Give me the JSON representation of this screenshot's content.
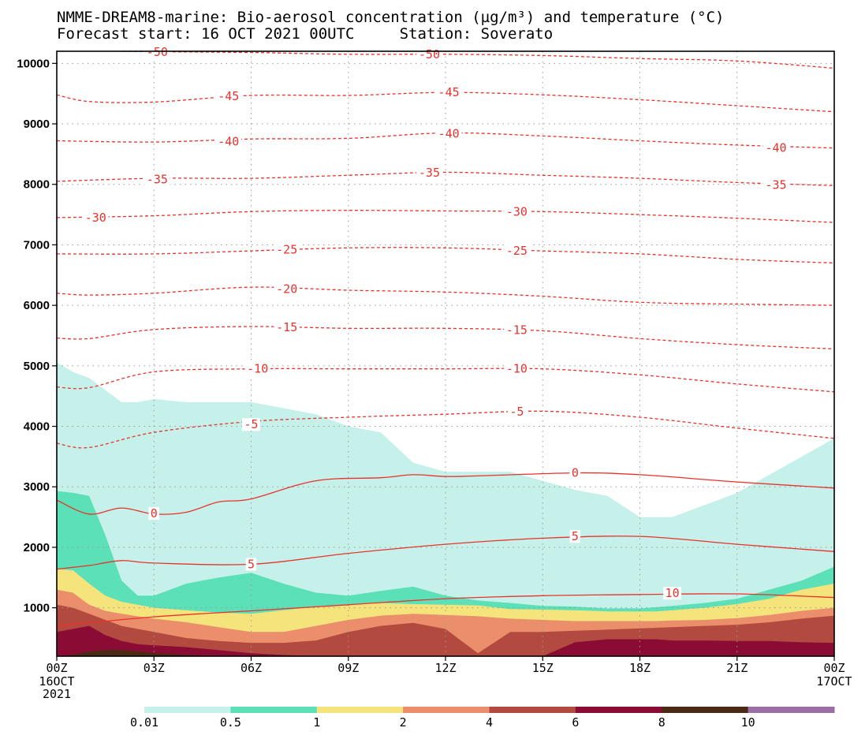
{
  "chart_data": {
    "type": "contour",
    "title": "NMME-DREAM8-marine: Bio-aerosol concentration (µg/m³) and temperature (°C)",
    "subtitle": "Forecast start: 16 OCT 2021 00UTC     Station: Soverato",
    "ylim": [
      200,
      10200
    ],
    "xlim": [
      0,
      24
    ],
    "y_ticks": [
      1000,
      2000,
      3000,
      4000,
      5000,
      6000,
      7000,
      8000,
      9000,
      10000
    ],
    "x_ticks": [
      {
        "h": 0,
        "label": "00Z",
        "sub": [
          "16OCT",
          "2021"
        ]
      },
      {
        "h": 3,
        "label": "03Z",
        "sub": []
      },
      {
        "h": 6,
        "label": "06Z",
        "sub": []
      },
      {
        "h": 9,
        "label": "09Z",
        "sub": []
      },
      {
        "h": 12,
        "label": "12Z",
        "sub": []
      },
      {
        "h": 15,
        "label": "15Z",
        "sub": []
      },
      {
        "h": 18,
        "label": "18Z",
        "sub": []
      },
      {
        "h": 21,
        "label": "21Z",
        "sub": []
      },
      {
        "h": 24,
        "label": "00Z",
        "sub": [
          "17OCT"
        ]
      }
    ],
    "grid": true,
    "colorbar": {
      "levels": [
        "0.01",
        "0.5",
        "1",
        "2",
        "4",
        "6",
        "8",
        "10"
      ],
      "colors": [
        "#c6f1ea",
        "#5ce0b7",
        "#f5e37c",
        "#ea8e6b",
        "#b24a3f",
        "#8a0c35",
        "#4a2a14",
        "#9b6fa6"
      ]
    },
    "bio_aerosol_top_heights_m": {
      "x": [
        0,
        0.5,
        1,
        1.5,
        2,
        2.5,
        3,
        4,
        5,
        6,
        7,
        8,
        9,
        10,
        11,
        12,
        13,
        14,
        15,
        16,
        17,
        18,
        18.5,
        19,
        20,
        21,
        22,
        23,
        24
      ],
      "bands": [
        {
          "min": "0.01",
          "top": [
            5060,
            4900,
            4800,
            4600,
            4400,
            4400,
            4450,
            4400,
            4400,
            4400,
            4300,
            4200,
            4000,
            3900,
            3400,
            3250,
            3250,
            3250,
            3100,
            2950,
            2850,
            2500,
            2500,
            2500,
            2700,
            2900,
            3200,
            3500,
            3800
          ]
        },
        {
          "min": "0.5",
          "top": [
            2930,
            2900,
            2850,
            2200,
            1450,
            1200,
            1200,
            1400,
            1500,
            1580,
            1400,
            1250,
            1200,
            1280,
            1350,
            1200,
            1120,
            1080,
            1030,
            1020,
            990,
            990,
            1010,
            1030,
            1080,
            1150,
            1300,
            1450,
            1680
          ]
        },
        {
          "min": "1",
          "top": [
            1640,
            1620,
            1400,
            1200,
            1100,
            1050,
            1000,
            960,
            920,
            900,
            960,
            1020,
            1050,
            1080,
            1060,
            1050,
            1040,
            980,
            970,
            960,
            940,
            940,
            940,
            960,
            1000,
            1060,
            1150,
            1300,
            1400
          ]
        },
        {
          "min": "2",
          "top": [
            1300,
            1250,
            1050,
            950,
            900,
            860,
            820,
            760,
            680,
            600,
            600,
            700,
            800,
            870,
            900,
            880,
            860,
            820,
            800,
            780,
            780,
            780,
            780,
            790,
            800,
            830,
            880,
            950,
            1000
          ]
        },
        {
          "min": "4",
          "top": [
            1050,
            1000,
            900,
            800,
            700,
            650,
            600,
            500,
            450,
            420,
            420,
            460,
            600,
            700,
            750,
            650,
            250,
            600,
            600,
            620,
            640,
            660,
            670,
            680,
            700,
            720,
            760,
            820,
            870
          ]
        },
        {
          "min": "6",
          "top": [
            600,
            650,
            700,
            550,
            450,
            400,
            380,
            350,
            300,
            250,
            220,
            200,
            200,
            200,
            200,
            200,
            200,
            200,
            200,
            430,
            480,
            480,
            480,
            460,
            460,
            450,
            450,
            430,
            420
          ]
        },
        {
          "min": "8",
          "top": [
            200,
            220,
            280,
            300,
            300,
            280,
            250,
            220,
            200,
            200,
            200,
            200,
            200,
            200,
            200,
            200,
            200,
            200,
            200,
            200,
            200,
            200,
            200,
            200,
            200,
            200,
            200,
            200,
            200
          ]
        }
      ]
    },
    "temperature_isolines": [
      {
        "value": -50,
        "label": "-50",
        "x": [
          0,
          2,
          6,
          9,
          12,
          15,
          18,
          21,
          24
        ],
        "y": [
          10240,
          10200,
          10180,
          10150,
          10150,
          10130,
          10080,
          10040,
          9920
        ]
      },
      {
        "value": -45,
        "label": "-45",
        "x": [
          0,
          1,
          3,
          6,
          9,
          12,
          15,
          18,
          21,
          24
        ],
        "y": [
          9480,
          9370,
          9360,
          9470,
          9470,
          9520,
          9480,
          9400,
          9300,
          9200
        ]
      },
      {
        "value": -40,
        "label": "-40",
        "x": [
          0,
          3,
          6,
          9,
          12,
          15,
          18,
          21,
          24
        ],
        "y": [
          8720,
          8700,
          8750,
          8760,
          8850,
          8800,
          8720,
          8650,
          8600
        ]
      },
      {
        "value": -35,
        "label": "-35",
        "x": [
          0,
          3,
          6,
          9,
          12,
          15,
          18,
          21,
          24
        ],
        "y": [
          8050,
          8100,
          8100,
          8150,
          8200,
          8150,
          8100,
          8030,
          7980
        ]
      },
      {
        "value": -30,
        "label": "-30",
        "x": [
          0,
          3,
          6,
          9,
          12,
          15,
          18,
          21,
          24
        ],
        "y": [
          7450,
          7480,
          7550,
          7570,
          7560,
          7550,
          7500,
          7440,
          7370
        ]
      },
      {
        "value": -25,
        "label": "-25",
        "x": [
          0,
          3,
          6,
          9,
          12,
          15,
          18,
          21,
          24
        ],
        "y": [
          6850,
          6850,
          6900,
          6950,
          6950,
          6900,
          6850,
          6760,
          6700
        ]
      },
      {
        "value": -20,
        "label": "-20",
        "x": [
          0,
          1,
          3,
          6,
          9,
          12,
          15,
          18,
          21,
          24
        ],
        "y": [
          6200,
          6170,
          6200,
          6300,
          6250,
          6220,
          6150,
          6050,
          6020,
          6000
        ]
      },
      {
        "value": -15,
        "label": "-15",
        "x": [
          0,
          1,
          3,
          6,
          9,
          12,
          15,
          18,
          21,
          24
        ],
        "y": [
          5460,
          5450,
          5600,
          5650,
          5620,
          5620,
          5580,
          5450,
          5350,
          5280
        ]
      },
      {
        "value": -10,
        "label": "-10",
        "x": [
          0,
          1,
          3,
          6,
          9,
          12,
          15,
          18,
          21,
          24
        ],
        "y": [
          4650,
          4640,
          4900,
          4950,
          4950,
          4950,
          4950,
          4850,
          4700,
          4570
        ]
      },
      {
        "value": -5,
        "label": "-5",
        "x": [
          0,
          1,
          3,
          6,
          9,
          12,
          15,
          18,
          21,
          24
        ],
        "y": [
          3720,
          3650,
          3900,
          4080,
          4150,
          4200,
          4250,
          4150,
          3970,
          3800
        ]
      },
      {
        "value": 0,
        "label": "0",
        "x": [
          0,
          1,
          2,
          3,
          4,
          5,
          6,
          8,
          10,
          11,
          12,
          13,
          16,
          18,
          21,
          24
        ],
        "y": [
          2780,
          2550,
          2650,
          2550,
          2580,
          2750,
          2800,
          3100,
          3150,
          3200,
          3170,
          3180,
          3230,
          3200,
          3080,
          2980
        ]
      },
      {
        "value": 5,
        "label": "5",
        "x": [
          0,
          1,
          2,
          3,
          6,
          9,
          12,
          15,
          18,
          21,
          24
        ],
        "y": [
          1640,
          1700,
          1780,
          1740,
          1720,
          1900,
          2050,
          2150,
          2180,
          2050,
          1930
        ]
      },
      {
        "value": 10,
        "label": "10",
        "x": [
          0,
          3,
          6,
          9,
          12,
          15,
          18,
          21,
          24
        ],
        "y": [
          700,
          850,
          950,
          1050,
          1150,
          1200,
          1220,
          1230,
          1170
        ]
      }
    ],
    "contour_labels": [
      {
        "text": "-50",
        "h": 3.1,
        "z": 10190
      },
      {
        "text": "-50",
        "h": 11.5,
        "z": 10150
      },
      {
        "text": "-45",
        "h": 5.3,
        "z": 9460
      },
      {
        "text": "-45",
        "h": 12.1,
        "z": 9520
      },
      {
        "text": "-40",
        "h": 5.3,
        "z": 8710
      },
      {
        "text": "-40",
        "h": 12.1,
        "z": 8840
      },
      {
        "text": "-40",
        "h": 22.2,
        "z": 8600
      },
      {
        "text": "-35",
        "h": 3.1,
        "z": 8080
      },
      {
        "text": "-35",
        "h": 11.5,
        "z": 8190
      },
      {
        "text": "-35",
        "h": 22.2,
        "z": 7990
      },
      {
        "text": "-30",
        "h": 1.2,
        "z": 7450
      },
      {
        "text": "-30",
        "h": 14.2,
        "z": 7550
      },
      {
        "text": "-25",
        "h": 7.1,
        "z": 6920
      },
      {
        "text": "-25",
        "h": 14.2,
        "z": 6900
      },
      {
        "text": "-20",
        "h": 7.1,
        "z": 6270
      },
      {
        "text": "-15",
        "h": 7.1,
        "z": 5640
      },
      {
        "text": "-15",
        "h": 14.2,
        "z": 5590
      },
      {
        "text": "-10",
        "h": 6.2,
        "z": 4950
      },
      {
        "text": "-10",
        "h": 14.2,
        "z": 4950
      },
      {
        "text": "-5",
        "h": 6.0,
        "z": 4030
      },
      {
        "text": "-5",
        "h": 14.2,
        "z": 4240
      },
      {
        "text": "0",
        "h": 3.0,
        "z": 2560
      },
      {
        "text": "0",
        "h": 16.0,
        "z": 3230
      },
      {
        "text": "5",
        "h": 6.0,
        "z": 1720
      },
      {
        "text": "5",
        "h": 16.0,
        "z": 2180
      },
      {
        "text": "10",
        "h": 19.0,
        "z": 1240
      }
    ]
  }
}
